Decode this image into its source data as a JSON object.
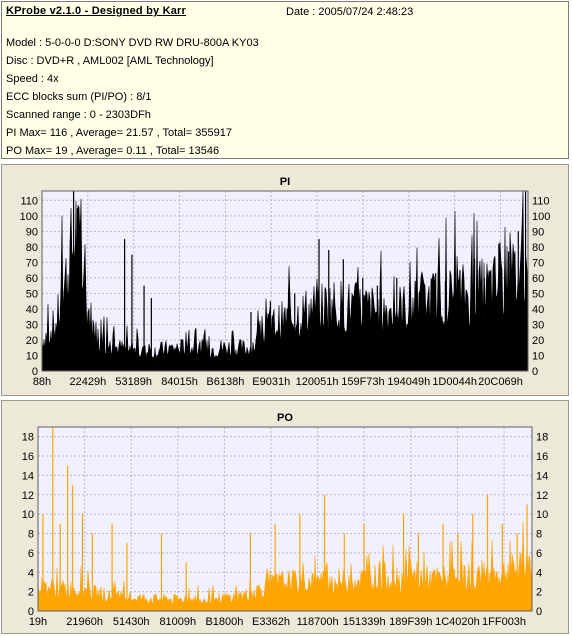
{
  "header": {
    "title": "KProbe v2.1.0 - Designed by Karr",
    "date": "Date : 2005/07/24 2:48:23",
    "lines": [
      "Model : 5-0-0-0 D:SONY    DVD RW DRU-800A  KY03",
      "Disc : DVD+R , AML002 [AML Technology]",
      "Speed : 4x",
      "ECC blocks sum (PI/PO) : 8/1",
      "Scanned range : 0 - 2303DFh",
      "PI Max= 116 , Average= 21.57 , Total= 355917",
      "PO Max= 19 , Average= 0.11 , Total= 13546"
    ]
  },
  "chart_data": [
    {
      "type": "area",
      "title": "PI",
      "color": "#000000",
      "background": "#f0f0ff",
      "ylim": [
        0,
        116
      ],
      "y_ticks": [
        0,
        10,
        20,
        30,
        40,
        50,
        60,
        70,
        80,
        90,
        100,
        110
      ],
      "x_tick_labels": [
        "88h",
        "22429h",
        "53189h",
        "84015h",
        "B6138h",
        "E9031h",
        "120051h",
        "159F73h",
        "194049h",
        "1D0044h",
        "20C069h"
      ],
      "grid": true,
      "profile": [
        [
          0,
          20
        ],
        [
          3,
          30
        ],
        [
          5,
          60
        ],
        [
          7,
          90
        ],
        [
          9,
          45
        ],
        [
          11,
          22
        ],
        [
          14,
          16
        ],
        [
          18,
          13
        ],
        [
          22,
          12
        ],
        [
          26,
          14
        ],
        [
          30,
          15
        ],
        [
          34,
          14
        ],
        [
          38,
          15
        ],
        [
          42,
          14
        ],
        [
          44,
          18
        ],
        [
          46,
          25
        ],
        [
          48,
          30
        ],
        [
          50,
          32
        ],
        [
          52,
          35
        ],
        [
          56,
          40
        ],
        [
          60,
          42
        ],
        [
          65,
          40
        ],
        [
          70,
          38
        ],
        [
          75,
          40
        ],
        [
          80,
          45
        ],
        [
          85,
          48
        ],
        [
          90,
          50
        ],
        [
          95,
          55
        ],
        [
          100,
          65
        ]
      ],
      "spikes": [
        [
          6.5,
          116
        ],
        [
          7.3,
          105
        ],
        [
          7.8,
          92
        ],
        [
          17,
          85
        ],
        [
          18.5,
          75
        ],
        [
          21,
          55
        ],
        [
          22.5,
          47
        ],
        [
          43,
          38
        ],
        [
          47,
          45
        ],
        [
          52,
          50
        ],
        [
          57,
          85
        ],
        [
          59,
          78
        ],
        [
          62,
          72
        ],
        [
          66,
          60
        ],
        [
          69,
          55
        ],
        [
          73,
          60
        ],
        [
          77,
          58
        ],
        [
          81,
          63
        ],
        [
          83,
          58
        ],
        [
          86,
          65
        ],
        [
          89,
          72
        ],
        [
          91,
          60
        ],
        [
          94,
          82
        ],
        [
          96,
          77
        ],
        [
          98,
          90
        ],
        [
          99.5,
          116
        ]
      ]
    },
    {
      "type": "area",
      "title": "PO",
      "color": "#ffa500",
      "background": "#f0f0ff",
      "ylim": [
        0,
        19
      ],
      "y_ticks": [
        0,
        2,
        4,
        6,
        8,
        10,
        12,
        14,
        16,
        18
      ],
      "x_tick_labels": [
        "19h",
        "21960h",
        "51430h",
        "81009h",
        "B1800h",
        "E3362h",
        "118700h",
        "151339h",
        "189F39h",
        "1C4020h",
        "1FF003h"
      ],
      "grid": true,
      "profile": [
        [
          0,
          2.5
        ],
        [
          8,
          2.2
        ],
        [
          15,
          1.5
        ],
        [
          25,
          1.2
        ],
        [
          35,
          1.2
        ],
        [
          42,
          1.6
        ],
        [
          46,
          2.5
        ],
        [
          50,
          3.0
        ],
        [
          60,
          3.0
        ],
        [
          70,
          3.5
        ],
        [
          80,
          3.2
        ],
        [
          90,
          3.5
        ],
        [
          100,
          4.5
        ]
      ],
      "spikes": [
        [
          1,
          10
        ],
        [
          3,
          19
        ],
        [
          4.5,
          9
        ],
        [
          6,
          15
        ],
        [
          7,
          13
        ],
        [
          9,
          10
        ],
        [
          11,
          8
        ],
        [
          15,
          9
        ],
        [
          18,
          7
        ],
        [
          25,
          8
        ],
        [
          30,
          5
        ],
        [
          43,
          8
        ],
        [
          48,
          9
        ],
        [
          53,
          10
        ],
        [
          58,
          12
        ],
        [
          62,
          8
        ],
        [
          66,
          9
        ],
        [
          74,
          10
        ],
        [
          77,
          8
        ],
        [
          82,
          9
        ],
        [
          85,
          8
        ],
        [
          88,
          10
        ],
        [
          91,
          12
        ],
        [
          94,
          9
        ],
        [
          97,
          8
        ],
        [
          99,
          11
        ]
      ]
    }
  ]
}
